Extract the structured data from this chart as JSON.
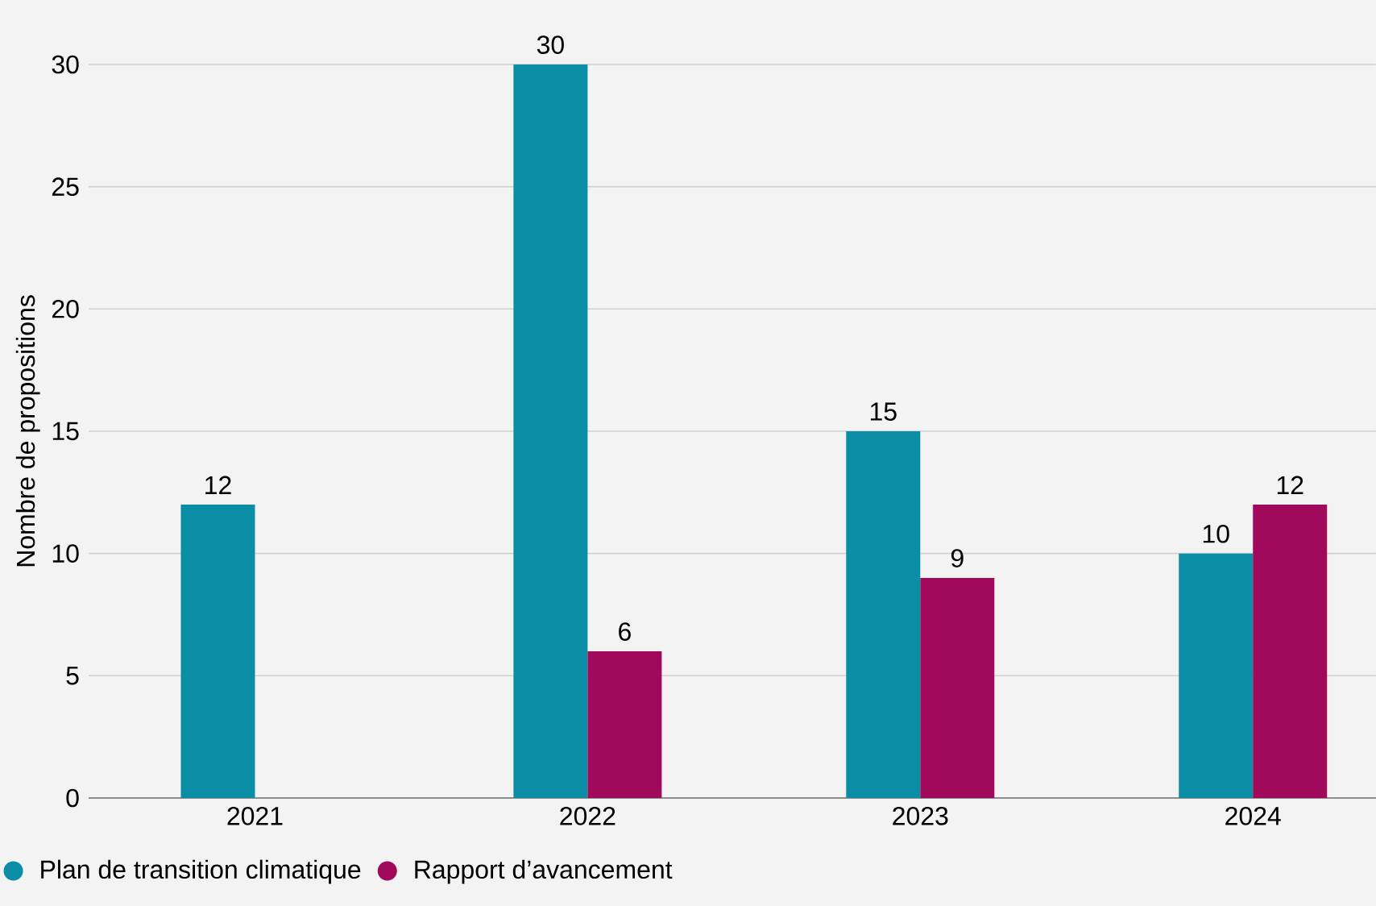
{
  "chart_data": {
    "type": "bar",
    "ylabel": "Nombre de propositions",
    "categories": [
      "2021",
      "2022",
      "2023",
      "2024"
    ],
    "series": [
      {
        "name": "Plan de transition climatique",
        "color": "#0b8ea5",
        "values": [
          12,
          30,
          15,
          10
        ]
      },
      {
        "name": "Rapport d’avancement",
        "color": "#a1095c",
        "values": [
          null,
          6,
          9,
          12
        ]
      }
    ],
    "ylim": [
      0,
      30
    ],
    "yticks": [
      0,
      5,
      10,
      15,
      20,
      25,
      30
    ],
    "grid": "y",
    "legend": "bottom left",
    "data_labels": true
  }
}
